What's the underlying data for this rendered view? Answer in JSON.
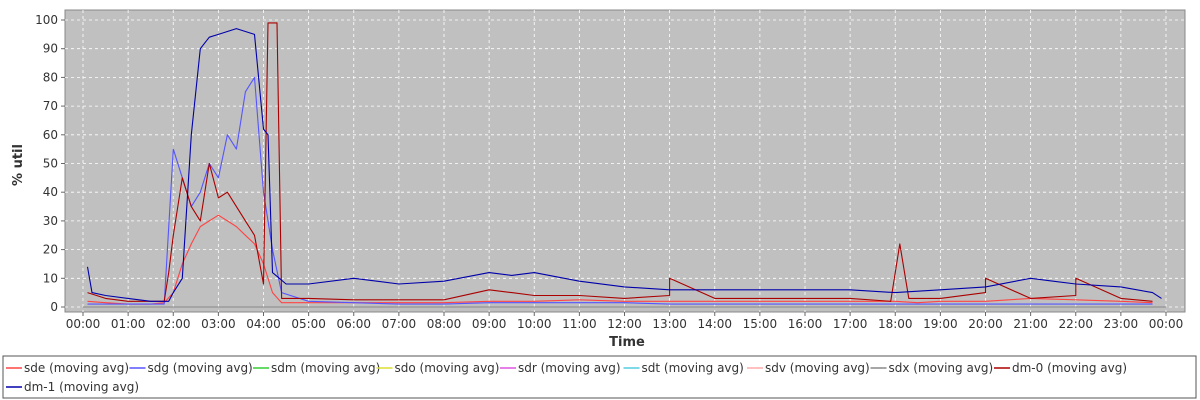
{
  "chart_data": {
    "type": "line",
    "title": "",
    "xlabel": "Time",
    "ylabel": "% util",
    "ylim": [
      0,
      100
    ],
    "yticks": [
      0,
      10,
      20,
      30,
      40,
      50,
      60,
      70,
      80,
      90,
      100
    ],
    "xlim": [
      0,
      24
    ],
    "x_tick_labels": [
      "00:00",
      "01:00",
      "02:00",
      "03:00",
      "04:00",
      "05:00",
      "06:00",
      "07:00",
      "08:00",
      "09:00",
      "10:00",
      "11:00",
      "12:00",
      "13:00",
      "14:00",
      "15:00",
      "16:00",
      "17:00",
      "18:00",
      "19:00",
      "20:00",
      "21:00",
      "22:00",
      "23:00",
      "00:00"
    ],
    "grid": true,
    "legend_position": "bottom",
    "series": [
      {
        "name": "sde (moving avg)",
        "color": "#ff4444",
        "points": [
          [
            0.1,
            2
          ],
          [
            0.5,
            1.5
          ],
          [
            1,
            1
          ],
          [
            1.5,
            1
          ],
          [
            1.8,
            1.5
          ],
          [
            2,
            5
          ],
          [
            2.2,
            15
          ],
          [
            2.4,
            22
          ],
          [
            2.6,
            28
          ],
          [
            2.8,
            30
          ],
          [
            3,
            32
          ],
          [
            3.2,
            30
          ],
          [
            3.4,
            28
          ],
          [
            3.6,
            25
          ],
          [
            3.8,
            22
          ],
          [
            4,
            15
          ],
          [
            4.2,
            5
          ],
          [
            4.4,
            1.5
          ],
          [
            5,
            1.5
          ],
          [
            6,
            1.5
          ],
          [
            7,
            1.5
          ],
          [
            8,
            1.5
          ],
          [
            9,
            2
          ],
          [
            10,
            2
          ],
          [
            11,
            2.5
          ],
          [
            12,
            2
          ],
          [
            13,
            2
          ],
          [
            14,
            2
          ],
          [
            15,
            2
          ],
          [
            16,
            2
          ],
          [
            17,
            2
          ],
          [
            18,
            2
          ],
          [
            18.5,
            1.5
          ],
          [
            19,
            2
          ],
          [
            20,
            2
          ],
          [
            21,
            3
          ],
          [
            22,
            2.5
          ],
          [
            23,
            2
          ],
          [
            23.7,
            1.5
          ]
        ]
      },
      {
        "name": "sdg (moving avg)",
        "color": "#5555ff",
        "points": [
          [
            0.1,
            1
          ],
          [
            1,
            1
          ],
          [
            1.8,
            1
          ],
          [
            2,
            55
          ],
          [
            2.2,
            45
          ],
          [
            2.4,
            35
          ],
          [
            2.6,
            40
          ],
          [
            2.8,
            50
          ],
          [
            3,
            45
          ],
          [
            3.2,
            60
          ],
          [
            3.4,
            55
          ],
          [
            3.6,
            75
          ],
          [
            3.8,
            80
          ],
          [
            4,
            40
          ],
          [
            4.2,
            20
          ],
          [
            4.4,
            5
          ],
          [
            5,
            2
          ],
          [
            6,
            1.5
          ],
          [
            7,
            1
          ],
          [
            8,
            1
          ],
          [
            9,
            1.5
          ],
          [
            10,
            1.5
          ],
          [
            11,
            1.5
          ],
          [
            12,
            1.5
          ],
          [
            13,
            1
          ],
          [
            14,
            1
          ],
          [
            15,
            1
          ],
          [
            16,
            1
          ],
          [
            17,
            1
          ],
          [
            18,
            1
          ],
          [
            19,
            1
          ],
          [
            20,
            1
          ],
          [
            21,
            1
          ],
          [
            22,
            1
          ],
          [
            23,
            1
          ],
          [
            23.7,
            1
          ]
        ]
      },
      {
        "name": "sdm (moving avg)",
        "color": "#33cc33",
        "points": [
          [
            0,
            0
          ],
          [
            24,
            0
          ]
        ]
      },
      {
        "name": "sdo (moving avg)",
        "color": "#dddd33",
        "points": [
          [
            0,
            0
          ],
          [
            24,
            0
          ]
        ]
      },
      {
        "name": "sdr (moving avg)",
        "color": "#dd55dd",
        "points": [
          [
            0,
            0
          ],
          [
            24,
            0
          ]
        ]
      },
      {
        "name": "sdt (moving avg)",
        "color": "#55ccdd",
        "points": [
          [
            0,
            0
          ],
          [
            24,
            0
          ]
        ]
      },
      {
        "name": "sdv (moving avg)",
        "color": "#ffaaaa",
        "points": [
          [
            0,
            0
          ],
          [
            24,
            0
          ]
        ]
      },
      {
        "name": "sdx (moving avg)",
        "color": "#888888",
        "points": [
          [
            0,
            0
          ],
          [
            24,
            0
          ]
        ]
      },
      {
        "name": "dm-0 (moving avg)",
        "color": "#aa0000",
        "points": [
          [
            0.1,
            5
          ],
          [
            0.5,
            3
          ],
          [
            1,
            2
          ],
          [
            1.5,
            2
          ],
          [
            1.8,
            2
          ],
          [
            1.9,
            12
          ],
          [
            2,
            25
          ],
          [
            2.2,
            45
          ],
          [
            2.4,
            35
          ],
          [
            2.6,
            30
          ],
          [
            2.8,
            50
          ],
          [
            3,
            38
          ],
          [
            3.2,
            40
          ],
          [
            3.4,
            35
          ],
          [
            3.6,
            30
          ],
          [
            3.8,
            25
          ],
          [
            4,
            8
          ],
          [
            4.1,
            99
          ],
          [
            4.3,
            99
          ],
          [
            4.4,
            3
          ],
          [
            5,
            3
          ],
          [
            6,
            2.5
          ],
          [
            7,
            2.5
          ],
          [
            8,
            2.5
          ],
          [
            9,
            6
          ],
          [
            9.5,
            5
          ],
          [
            10,
            4
          ],
          [
            11,
            4
          ],
          [
            12,
            3
          ],
          [
            13,
            4
          ],
          [
            13,
            10
          ],
          [
            14,
            3
          ],
          [
            15,
            3
          ],
          [
            16,
            3
          ],
          [
            17,
            3
          ],
          [
            17.9,
            2
          ],
          [
            18.1,
            22
          ],
          [
            18.3,
            3
          ],
          [
            19,
            3
          ],
          [
            20,
            5
          ],
          [
            20,
            10
          ],
          [
            21,
            3
          ],
          [
            22,
            4
          ],
          [
            22,
            10
          ],
          [
            23,
            3
          ],
          [
            23.7,
            2
          ]
        ]
      },
      {
        "name": "dm-1 (moving avg)",
        "color": "#0000aa",
        "points": [
          [
            0.1,
            14
          ],
          [
            0.2,
            5
          ],
          [
            0.5,
            4
          ],
          [
            1,
            3
          ],
          [
            1.5,
            2
          ],
          [
            1.9,
            2
          ],
          [
            2,
            5
          ],
          [
            2.2,
            10
          ],
          [
            2.4,
            60
          ],
          [
            2.6,
            90
          ],
          [
            2.8,
            94
          ],
          [
            3,
            95
          ],
          [
            3.2,
            96
          ],
          [
            3.4,
            97
          ],
          [
            3.6,
            96
          ],
          [
            3.8,
            95
          ],
          [
            4,
            62
          ],
          [
            4.1,
            60
          ],
          [
            4.2,
            12
          ],
          [
            4.5,
            8
          ],
          [
            5,
            8
          ],
          [
            6,
            10
          ],
          [
            7,
            8
          ],
          [
            8,
            9
          ],
          [
            9,
            12
          ],
          [
            9.5,
            11
          ],
          [
            10,
            12
          ],
          [
            11,
            9
          ],
          [
            12,
            7
          ],
          [
            13,
            6
          ],
          [
            14,
            6
          ],
          [
            15,
            6
          ],
          [
            16,
            6
          ],
          [
            17,
            6
          ],
          [
            18,
            5
          ],
          [
            19,
            6
          ],
          [
            20,
            7
          ],
          [
            21,
            10
          ],
          [
            21.5,
            9
          ],
          [
            22,
            8
          ],
          [
            23,
            7
          ],
          [
            23.7,
            5
          ],
          [
            23.9,
            3
          ]
        ]
      }
    ]
  }
}
